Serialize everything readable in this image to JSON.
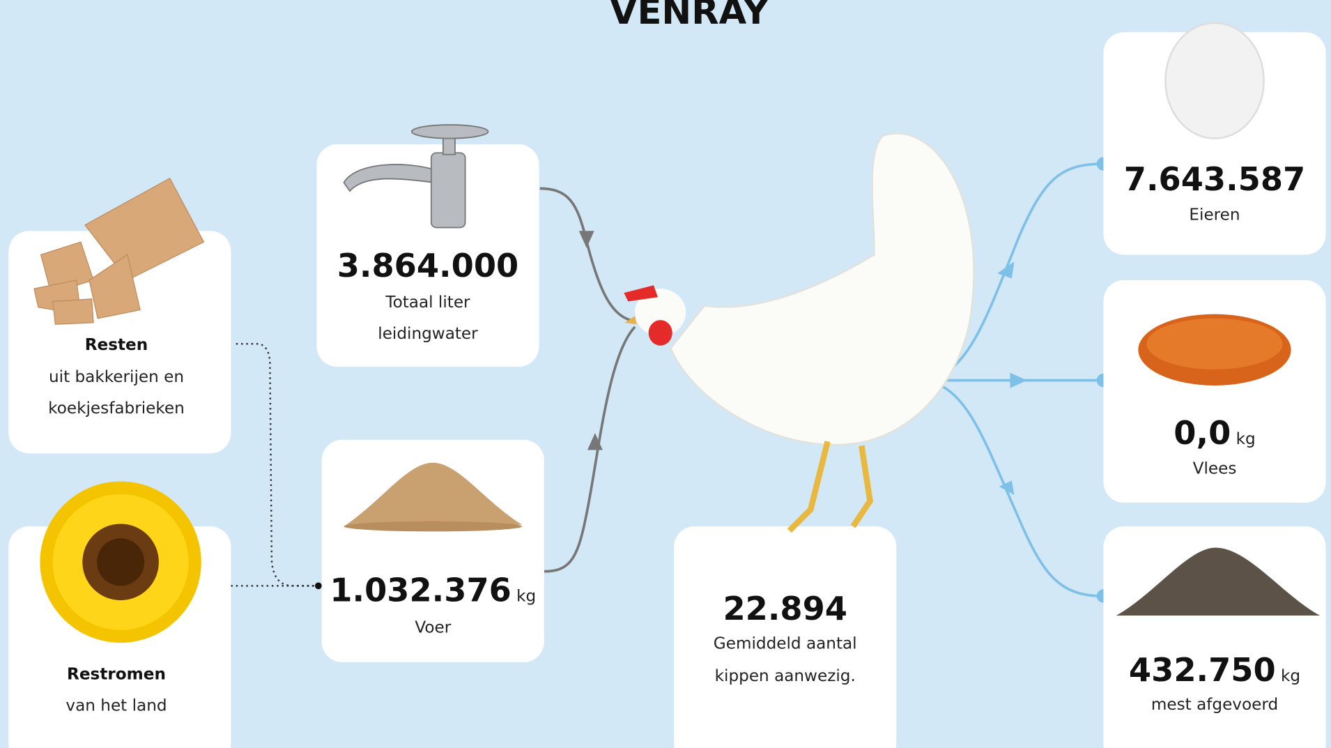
{
  "title": "VENRAY",
  "inputs": {
    "resten": {
      "title": "Resten",
      "lines": [
        "uit bakkerijen en",
        "koekjesfabrieken"
      ]
    },
    "restromen": {
      "title": "Restromen",
      "lines": [
        "van het land"
      ]
    },
    "water": {
      "value": "3.864.000",
      "lines": [
        "Totaal liter",
        "leidingwater"
      ]
    },
    "voer": {
      "value": "1.032.376",
      "unit": "kg",
      "lines": [
        "Voer"
      ]
    }
  },
  "chickens": {
    "value": "22.894",
    "lines": [
      "Gemiddeld aantal",
      "kippen aanwezig."
    ]
  },
  "outputs": {
    "eieren": {
      "value": "7.643.587",
      "lines": [
        "Eieren"
      ]
    },
    "vlees": {
      "value": "0,0",
      "unit": "kg",
      "lines": [
        "Vlees"
      ]
    },
    "mest": {
      "value": "432.750",
      "unit": "kg",
      "lines": [
        "mest afgevoerd"
      ]
    }
  }
}
